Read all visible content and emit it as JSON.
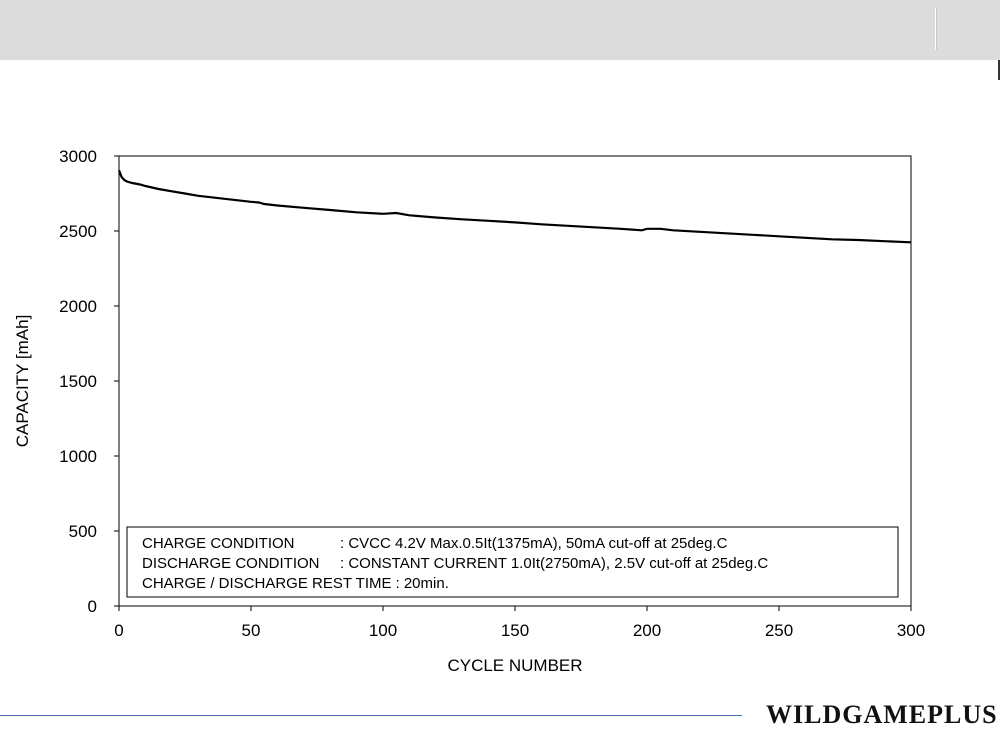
{
  "branding": {
    "name": "WILDGAMEPLUS"
  },
  "chart_data": {
    "type": "line",
    "xlabel": "CYCLE NUMBER",
    "ylabel": "CAPACITY  [mAh]",
    "xlim": [
      0,
      300
    ],
    "ylim": [
      0,
      3000
    ],
    "xticks": [
      0,
      50,
      100,
      150,
      200,
      250,
      300
    ],
    "yticks": [
      0,
      500,
      1000,
      1500,
      2000,
      2500,
      3000
    ],
    "grid": false,
    "series": [
      {
        "x": [
          0,
          1,
          2,
          3,
          5,
          8,
          10,
          15,
          20,
          25,
          30,
          35,
          40,
          45,
          50,
          53,
          55,
          60,
          70,
          80,
          90,
          100,
          105,
          110,
          120,
          130,
          140,
          150,
          160,
          170,
          180,
          190,
          198,
          200,
          205,
          210,
          220,
          230,
          240,
          250,
          260,
          270,
          280,
          290,
          300
        ],
        "y": [
          2905,
          2860,
          2840,
          2830,
          2820,
          2810,
          2800,
          2780,
          2765,
          2750,
          2735,
          2725,
          2715,
          2705,
          2695,
          2690,
          2680,
          2670,
          2655,
          2640,
          2625,
          2615,
          2620,
          2605,
          2590,
          2578,
          2568,
          2557,
          2545,
          2535,
          2525,
          2515,
          2505,
          2515,
          2515,
          2505,
          2495,
          2485,
          2475,
          2465,
          2455,
          2445,
          2440,
          2432,
          2425
        ],
        "color": "#000000"
      }
    ],
    "annotation": {
      "lines": [
        {
          "label": "CHARGE CONDITION",
          "value": ": CVCC 4.2V Max.0.5It(1375mA), 50mA cut-off at 25deg.C"
        },
        {
          "label": "DISCHARGE CONDITION",
          "value": ": CONSTANT CURRENT 1.0It(2750mA), 2.5V cut-off at 25deg.C"
        },
        {
          "label": "CHARGE / DISCHARGE REST TIME",
          "value": ": 20min."
        }
      ]
    }
  }
}
